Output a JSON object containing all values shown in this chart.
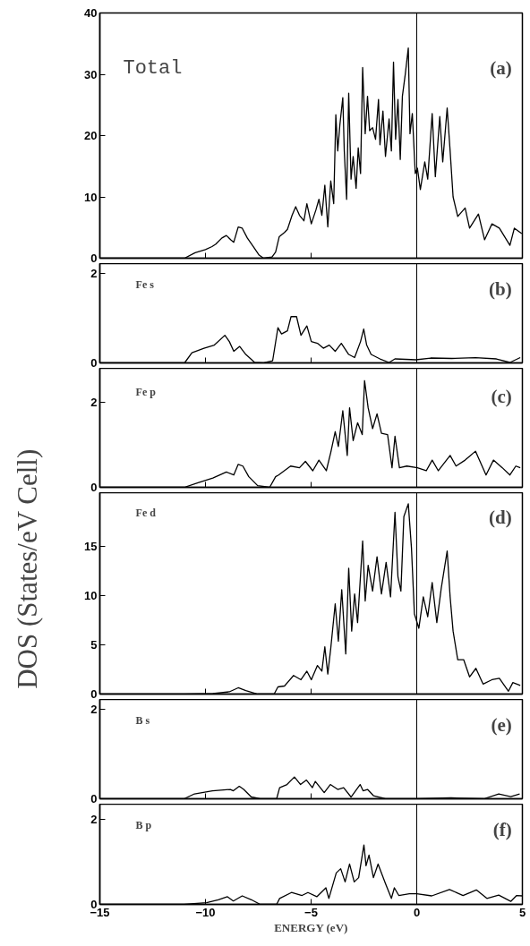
{
  "chart_data": [
    {
      "type": "line",
      "xlim": [
        -15,
        5
      ],
      "xticks": [
        -15,
        -10,
        -5,
        0,
        5
      ],
      "ylim": [
        0,
        40
      ],
      "yticks": [
        0,
        10,
        20,
        30,
        40
      ],
      "grid": false,
      "tick_labels": "y",
      "color": "#000000",
      "annotations": [
        "Total",
        "(a)"
      ],
      "ref_lines": [
        {
          "axis": "x",
          "value": 0
        }
      ],
      "x": [
        -15,
        -10.99,
        -10.49,
        -10.0,
        -9.69,
        -9.51,
        -9.22,
        -9.01,
        -8.8,
        -8.66,
        -8.45,
        -8.26,
        -8.02,
        -7.74,
        -7.46,
        -7.25,
        -6.85,
        -6.68,
        -6.51,
        -6.26,
        -6.12,
        -5.9,
        -5.73,
        -5.55,
        -5.34,
        -5.2,
        -4.99,
        -4.77,
        -4.63,
        -4.49,
        -4.35,
        -4.21,
        -4.07,
        -3.93,
        -3.83,
        -3.74,
        -3.64,
        -3.5,
        -3.43,
        -3.32,
        -3.22,
        -3.11,
        -3.01,
        -2.87,
        -2.77,
        -2.66,
        -2.56,
        -2.44,
        -2.33,
        -2.23,
        -2.09,
        -1.95,
        -1.81,
        -1.74,
        -1.6,
        -1.48,
        -1.31,
        -1.2,
        -1.1,
        -1.0,
        -0.89,
        -0.78,
        -0.68,
        -0.54,
        -0.4,
        -0.32,
        -0.21,
        -0.07,
        0.03,
        0.17,
        0.38,
        0.52,
        0.73,
        0.88,
        1.09,
        1.23,
        1.44,
        1.58,
        1.72,
        1.94,
        2.29,
        2.5,
        2.92,
        3.21,
        3.56,
        3.91,
        4.41,
        4.62,
        4.97
      ],
      "values": [
        0,
        0,
        0.9,
        1.4,
        1.9,
        2.3,
        3.3,
        3.7,
        3.0,
        2.6,
        5.1,
        4.9,
        3.3,
        1.9,
        0.5,
        0,
        0.2,
        1,
        3.5,
        4.2,
        4.7,
        7,
        8.4,
        7,
        6.1,
        8.9,
        5.6,
        7.9,
        9.6,
        7,
        11.9,
        5.1,
        12.6,
        8.9,
        23.4,
        17.5,
        21.7,
        26.2,
        17.5,
        9.6,
        26.9,
        12.9,
        16.6,
        11.4,
        18,
        13.8,
        31.1,
        20.3,
        26.4,
        20.8,
        21.3,
        19.4,
        25.9,
        18.5,
        24,
        16.6,
        22.7,
        17.5,
        32,
        19.4,
        25.9,
        16.1,
        26.4,
        30.1,
        34.3,
        20.3,
        23.6,
        13.8,
        14.7,
        11.2,
        15.7,
        12.9,
        23.6,
        13.3,
        23.1,
        15.7,
        24.5,
        17.5,
        10,
        6.8,
        8.2,
        4.9,
        7.2,
        3,
        5.6,
        4.9,
        2.1,
        4.9,
        4
      ]
    },
    {
      "type": "line",
      "xlim": [
        -15,
        5
      ],
      "xticks": [
        -15,
        -10,
        -5,
        0,
        5
      ],
      "ylim": [
        0,
        2.23
      ],
      "yticks": [
        0,
        2
      ],
      "grid": false,
      "tick_labels": "y",
      "color": "#000000",
      "annotations": [
        "Fe  s",
        "(b)"
      ],
      "ref_lines": [
        {
          "axis": "x",
          "value": 0
        }
      ],
      "x": [
        -15,
        -10.99,
        -10.64,
        -10.07,
        -9.58,
        -9.08,
        -8.87,
        -8.66,
        -8.38,
        -8.09,
        -7.67,
        -7.25,
        -6.82,
        -6.57,
        -6.4,
        -6.12,
        -5.95,
        -5.69,
        -5.48,
        -5.2,
        -4.99,
        -4.7,
        -4.42,
        -4.14,
        -3.86,
        -3.57,
        -3.22,
        -2.94,
        -2.66,
        -2.51,
        -2.37,
        -2.16,
        -1.74,
        -1.31,
        -1.03,
        -0.04,
        0.66,
        1.65,
        2.78,
        3.77,
        4.41,
        4.9
      ],
      "values": [
        0,
        0,
        0.23,
        0.33,
        0.4,
        0.62,
        0.48,
        0.26,
        0.37,
        0.19,
        0.01,
        0,
        0.05,
        0.79,
        0.65,
        0.72,
        1.04,
        1.04,
        0.62,
        0.83,
        0.48,
        0.44,
        0.33,
        0.4,
        0.26,
        0.44,
        0.19,
        0.12,
        0.48,
        0.76,
        0.4,
        0.19,
        0.09,
        0.01,
        0.09,
        0.07,
        0.11,
        0.1,
        0.12,
        0.09,
        0.01,
        0.12
      ]
    },
    {
      "type": "line",
      "xlim": [
        -15,
        5
      ],
      "xticks": [
        -15,
        -10,
        -5,
        0,
        5
      ],
      "ylim": [
        0,
        2.8
      ],
      "yticks": [
        0,
        2
      ],
      "grid": false,
      "tick_labels": "y",
      "color": "#000000",
      "annotations": [
        "Fe  p",
        "(c)"
      ],
      "ref_lines": [
        {
          "axis": "x",
          "value": 0
        }
      ],
      "x": [
        -15,
        -11,
        -10.35,
        -9.65,
        -9.01,
        -8.66,
        -8.45,
        -8.23,
        -7.95,
        -7.53,
        -6.96,
        -6.68,
        -6.54,
        -5.97,
        -5.55,
        -5.27,
        -4.92,
        -4.63,
        -4.28,
        -4.07,
        -3.86,
        -3.71,
        -3.5,
        -3.29,
        -3.18,
        -3.01,
        -2.8,
        -2.58,
        -2.47,
        -2.3,
        -2.09,
        -1.88,
        -1.67,
        -1.38,
        -1.17,
        -1.03,
        -0.82,
        -0.47,
        0.03,
        0.45,
        0.73,
        1.02,
        1.58,
        1.86,
        2.29,
        2.78,
        3.28,
        3.63,
        4.05,
        4.41,
        4.69,
        4.9
      ],
      "values": [
        0,
        0,
        0.11,
        0.22,
        0.36,
        0.29,
        0.54,
        0.5,
        0.25,
        0.04,
        0,
        0.25,
        0.29,
        0.5,
        0.46,
        0.61,
        0.39,
        0.64,
        0.39,
        0.82,
        1.31,
        0.96,
        1.8,
        0.75,
        1.87,
        1.1,
        1.52,
        1.24,
        2.51,
        1.87,
        1.38,
        1.73,
        1.27,
        1.24,
        0.46,
        1.2,
        0.46,
        0.5,
        0.46,
        0.39,
        0.64,
        0.39,
        0.75,
        0.5,
        0.64,
        0.85,
        0.29,
        0.64,
        0.46,
        0.29,
        0.5,
        0.46
      ]
    },
    {
      "type": "line",
      "ylabel": "DOS (States/eV Cell)",
      "xlim": [
        -15,
        5
      ],
      "xticks": [
        -15,
        -10,
        -5,
        0,
        5
      ],
      "ylim": [
        0,
        20.5
      ],
      "yticks": [
        0,
        5,
        10,
        15
      ],
      "grid": false,
      "tick_labels": "y",
      "color": "#000000",
      "annotations": [
        "Fe  d",
        "(d)"
      ],
      "ref_lines": [
        {
          "axis": "x",
          "value": 0
        }
      ],
      "x": [
        -15,
        -11,
        -9.65,
        -8.87,
        -8.45,
        -8.09,
        -7.53,
        -6.75,
        -6.57,
        -6.26,
        -5.83,
        -5.48,
        -5.2,
        -4.99,
        -4.7,
        -4.49,
        -4.35,
        -4.21,
        -4.07,
        -3.86,
        -3.71,
        -3.55,
        -3.36,
        -3.22,
        -3.08,
        -2.94,
        -2.8,
        -2.56,
        -2.44,
        -2.3,
        -2.09,
        -1.88,
        -1.67,
        -1.45,
        -1.24,
        -1.03,
        -0.89,
        -0.75,
        -0.61,
        -0.4,
        -0.25,
        -0.11,
        0.1,
        0.31,
        0.52,
        0.73,
        0.95,
        1.16,
        1.44,
        1.58,
        1.72,
        1.94,
        2.22,
        2.5,
        2.8,
        3.14,
        3.56,
        3.91,
        4.34,
        4.55,
        4.9
      ],
      "values": [
        0,
        0,
        0.06,
        0.23,
        0.64,
        0.35,
        0,
        0,
        0.73,
        0.82,
        1.89,
        1.46,
        2.33,
        1.46,
        2.91,
        2.33,
        4.81,
        2.04,
        4.66,
        9.18,
        5.39,
        10.63,
        4.08,
        12.82,
        6.41,
        10.2,
        7.28,
        15.58,
        9.47,
        13.11,
        10.49,
        13.98,
        10.2,
        13.4,
        9.9,
        18.5,
        11.94,
        10.49,
        18.06,
        19.37,
        14.86,
        8.16,
        6.7,
        9.9,
        7.87,
        11.36,
        7.28,
        10.78,
        14.56,
        9.9,
        6.41,
        3.5,
        3.5,
        1.75,
        2.62,
        1.02,
        1.46,
        1.6,
        0.29,
        1.17,
        0.87
      ]
    },
    {
      "type": "line",
      "xlim": [
        -15,
        5
      ],
      "xticks": [
        -15,
        -10,
        -5,
        0,
        5
      ],
      "ylim": [
        0,
        2.23
      ],
      "yticks": [
        0,
        2
      ],
      "grid": false,
      "tick_labels": "y",
      "color": "#000000",
      "annotations": [
        "B   s",
        "(e)"
      ],
      "ref_lines": [
        {
          "axis": "x",
          "value": 0
        }
      ],
      "x": [
        -15,
        -11.01,
        -10.52,
        -9.67,
        -8.82,
        -8.68,
        -8.4,
        -8.19,
        -7.83,
        -7.41,
        -6.63,
        -6.49,
        -6.14,
        -5.79,
        -5.5,
        -5.22,
        -4.94,
        -4.8,
        -4.38,
        -4.09,
        -3.74,
        -3.46,
        -3.11,
        -2.68,
        -2.54,
        -2.33,
        -2.05,
        -1.48,
        0,
        1.62,
        3.18,
        3.88,
        4.45,
        4.87
      ],
      "values": [
        0,
        0,
        0.11,
        0.18,
        0.21,
        0.18,
        0.28,
        0.21,
        0.04,
        0,
        0,
        0.25,
        0.32,
        0.49,
        0.32,
        0.42,
        0.25,
        0.39,
        0.14,
        0.32,
        0.21,
        0.25,
        0.04,
        0.32,
        0.18,
        0.21,
        0.07,
        0,
        0,
        0.02,
        0,
        0.11,
        0.05,
        0.11
      ]
    },
    {
      "type": "line",
      "xlabel": "ENERGY (eV)",
      "xlim": [
        -15,
        5
      ],
      "xticks": [
        -15,
        -10,
        -5,
        0,
        5
      ],
      "ylim": [
        0,
        2.36
      ],
      "yticks": [
        0,
        2
      ],
      "grid": false,
      "color": "#000000",
      "annotations": [
        "B   p",
        "(f)"
      ],
      "ref_lines": [
        {
          "axis": "x",
          "value": 0
        }
      ],
      "x": [
        -15,
        -11.01,
        -9.95,
        -9.39,
        -8.96,
        -8.68,
        -8.26,
        -7.83,
        -7.41,
        -6.63,
        -6.49,
        -5.93,
        -5.43,
        -5.15,
        -4.73,
        -4.3,
        -4.16,
        -3.81,
        -3.6,
        -3.39,
        -3.18,
        -2.96,
        -2.75,
        -2.5,
        -2.4,
        -2.26,
        -2.05,
        -1.83,
        -1.48,
        -1.2,
        -1.06,
        -0.85,
        -0.35,
        0,
        0.71,
        1.55,
        2.19,
        2.82,
        3.32,
        3.88,
        4.45,
        4.73,
        5.0
      ],
      "values": [
        0,
        0,
        0.04,
        0.11,
        0.18,
        0.08,
        0.2,
        0.11,
        0,
        0,
        0.14,
        0.28,
        0.21,
        0.28,
        0.18,
        0.39,
        0.14,
        0.74,
        0.84,
        0.53,
        0.95,
        0.53,
        0.63,
        1.4,
        0.91,
        1.16,
        0.63,
        0.95,
        0.49,
        0.14,
        0.39,
        0.21,
        0.25,
        0.25,
        0.2,
        0.35,
        0.21,
        0.34,
        0.14,
        0.22,
        0.07,
        0.21,
        0.2
      ]
    }
  ]
}
